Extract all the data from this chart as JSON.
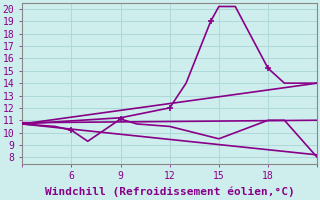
{
  "xlabel": "Windchill (Refroidissement éolien,°C)",
  "background_color": "#ceeeed",
  "grid_color": "#afd8d8",
  "line_color": "#880088",
  "xlim": [
    3,
    21
  ],
  "ylim": [
    7.5,
    20.5
  ],
  "xticks": [
    3,
    6,
    9,
    12,
    15,
    18,
    21
  ],
  "xtick_labels": [
    "",
    "6",
    "9",
    "12",
    "15",
    "18",
    ""
  ],
  "yticks": [
    8,
    9,
    10,
    11,
    12,
    13,
    14,
    15,
    16,
    17,
    18,
    19,
    20
  ],
  "line1_x": [
    3,
    9,
    12,
    13,
    14.5,
    15,
    16,
    18,
    19,
    21
  ],
  "line1_y": [
    10.7,
    11.2,
    12.0,
    14.0,
    19.0,
    20.2,
    20.2,
    15.2,
    14.0,
    14.0
  ],
  "line1_mx": [
    12,
    14.5,
    18
  ],
  "line1_my": [
    12.0,
    19.0,
    15.2
  ],
  "line2_x": [
    3,
    21
  ],
  "line2_y": [
    10.8,
    11.0
  ],
  "line3_x": [
    3,
    21
  ],
  "line3_y": [
    10.7,
    14.0
  ],
  "line4_x": [
    3,
    21
  ],
  "line4_y": [
    10.7,
    8.2
  ],
  "line5_x": [
    3,
    5,
    6,
    7,
    8,
    9,
    10,
    12,
    15,
    18,
    19,
    21
  ],
  "line5_y": [
    10.7,
    10.5,
    10.2,
    9.3,
    10.2,
    11.1,
    10.7,
    10.5,
    9.5,
    11.0,
    11.0,
    8.0
  ],
  "line5_mx": [
    6,
    9
  ],
  "line5_my": [
    10.2,
    11.1
  ],
  "xlabel_fontsize": 8,
  "tick_fontsize": 7,
  "tick_color": "#880088",
  "spine_color": "#888888"
}
